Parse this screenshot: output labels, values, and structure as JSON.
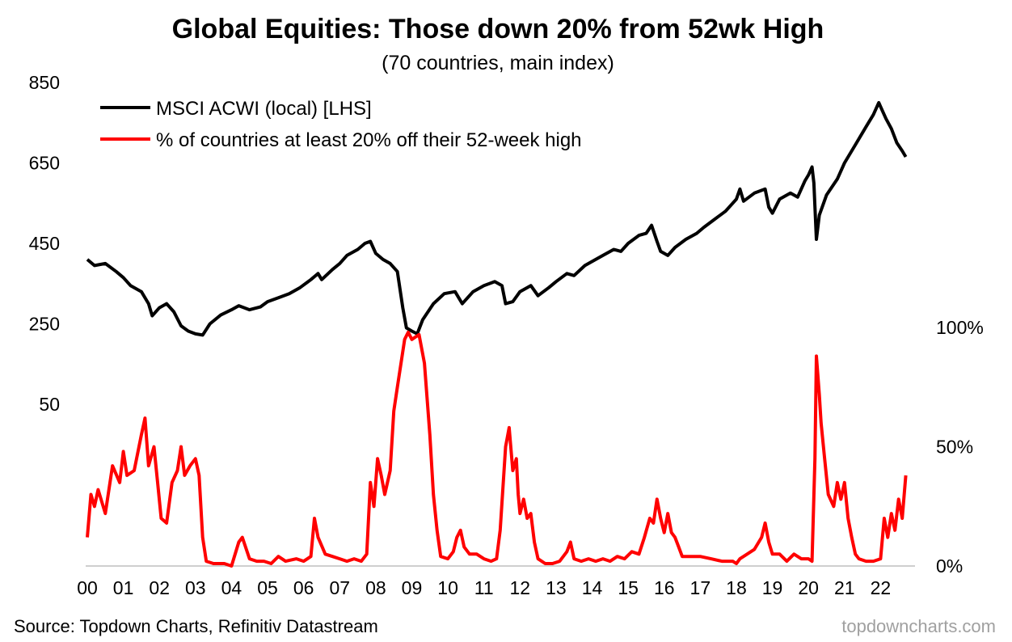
{
  "chart_data": {
    "type": "line",
    "title": "Global Equities: Those down 20% from 52wk High",
    "subtitle": "(70 countries, main index)",
    "source": "Source: Topdown Charts, Refinitiv Datastream",
    "brand": "topdowncharts.com",
    "colors": {
      "acwi": "#000000",
      "pct": "#ff0000"
    },
    "legend": {
      "placement": "top-left",
      "items": [
        {
          "name": "MSCI ACWI (local) [LHS]",
          "color": "#000000"
        },
        {
          "name": "% of countries at least 20% off their 52-week high",
          "color": "#ff0000"
        }
      ]
    },
    "x_ticks": [
      "00",
      "01",
      "02",
      "03",
      "04",
      "05",
      "06",
      "07",
      "08",
      "09",
      "10",
      "11",
      "12",
      "13",
      "14",
      "15",
      "16",
      "17",
      "18",
      "19",
      "20",
      "21",
      "22"
    ],
    "y_left": {
      "ticks": [
        "850",
        "650",
        "450",
        "250",
        "50"
      ],
      "range": [
        50,
        850
      ]
    },
    "y_right": {
      "ticks": [
        "100%",
        "50%",
        "0%"
      ],
      "range": [
        0,
        100
      ]
    },
    "series": [
      {
        "name": "MSCI ACWI (local) [LHS]",
        "axis": "left",
        "points": [
          [
            2000.0,
            410
          ],
          [
            2000.2,
            395
          ],
          [
            2000.5,
            400
          ],
          [
            2000.8,
            380
          ],
          [
            2001.0,
            365
          ],
          [
            2001.2,
            345
          ],
          [
            2001.5,
            330
          ],
          [
            2001.7,
            300
          ],
          [
            2001.8,
            270
          ],
          [
            2002.0,
            290
          ],
          [
            2002.2,
            300
          ],
          [
            2002.4,
            280
          ],
          [
            2002.6,
            245
          ],
          [
            2002.8,
            232
          ],
          [
            2003.0,
            225
          ],
          [
            2003.2,
            222
          ],
          [
            2003.4,
            250
          ],
          [
            2003.7,
            272
          ],
          [
            2004.0,
            285
          ],
          [
            2004.2,
            295
          ],
          [
            2004.5,
            285
          ],
          [
            2004.8,
            292
          ],
          [
            2005.0,
            305
          ],
          [
            2005.3,
            315
          ],
          [
            2005.6,
            325
          ],
          [
            2005.9,
            340
          ],
          [
            2006.2,
            360
          ],
          [
            2006.4,
            375
          ],
          [
            2006.5,
            360
          ],
          [
            2006.8,
            385
          ],
          [
            2007.0,
            400
          ],
          [
            2007.2,
            420
          ],
          [
            2007.5,
            435
          ],
          [
            2007.7,
            450
          ],
          [
            2007.85,
            455
          ],
          [
            2008.0,
            425
          ],
          [
            2008.2,
            410
          ],
          [
            2008.4,
            400
          ],
          [
            2008.6,
            380
          ],
          [
            2008.75,
            290
          ],
          [
            2008.85,
            240
          ],
          [
            2009.0,
            232
          ],
          [
            2009.15,
            225
          ],
          [
            2009.3,
            260
          ],
          [
            2009.6,
            300
          ],
          [
            2009.9,
            325
          ],
          [
            2010.2,
            330
          ],
          [
            2010.4,
            300
          ],
          [
            2010.7,
            330
          ],
          [
            2011.0,
            345
          ],
          [
            2011.3,
            355
          ],
          [
            2011.5,
            345
          ],
          [
            2011.6,
            300
          ],
          [
            2011.8,
            305
          ],
          [
            2012.0,
            330
          ],
          [
            2012.3,
            345
          ],
          [
            2012.5,
            320
          ],
          [
            2012.8,
            340
          ],
          [
            2013.0,
            355
          ],
          [
            2013.3,
            375
          ],
          [
            2013.5,
            370
          ],
          [
            2013.8,
            395
          ],
          [
            2014.0,
            405
          ],
          [
            2014.3,
            420
          ],
          [
            2014.6,
            435
          ],
          [
            2014.8,
            430
          ],
          [
            2015.0,
            450
          ],
          [
            2015.3,
            470
          ],
          [
            2015.5,
            475
          ],
          [
            2015.65,
            495
          ],
          [
            2015.8,
            455
          ],
          [
            2015.9,
            430
          ],
          [
            2016.1,
            420
          ],
          [
            2016.3,
            440
          ],
          [
            2016.6,
            460
          ],
          [
            2016.9,
            475
          ],
          [
            2017.1,
            490
          ],
          [
            2017.4,
            510
          ],
          [
            2017.7,
            530
          ],
          [
            2018.0,
            560
          ],
          [
            2018.1,
            585
          ],
          [
            2018.2,
            555
          ],
          [
            2018.5,
            575
          ],
          [
            2018.8,
            585
          ],
          [
            2018.9,
            540
          ],
          [
            2019.0,
            525
          ],
          [
            2019.2,
            560
          ],
          [
            2019.5,
            575
          ],
          [
            2019.7,
            565
          ],
          [
            2019.9,
            605
          ],
          [
            2020.0,
            620
          ],
          [
            2020.1,
            640
          ],
          [
            2020.15,
            600
          ],
          [
            2020.22,
            460
          ],
          [
            2020.3,
            520
          ],
          [
            2020.5,
            570
          ],
          [
            2020.8,
            610
          ],
          [
            2021.0,
            650
          ],
          [
            2021.3,
            695
          ],
          [
            2021.6,
            740
          ],
          [
            2021.8,
            770
          ],
          [
            2021.95,
            800
          ],
          [
            2022.0,
            790
          ],
          [
            2022.15,
            760
          ],
          [
            2022.3,
            735
          ],
          [
            2022.45,
            700
          ],
          [
            2022.6,
            680
          ],
          [
            2022.7,
            665
          ]
        ]
      },
      {
        "name": "% of countries at least 20% off their 52-week high",
        "axis": "right",
        "points": [
          [
            2000.0,
            12
          ],
          [
            2000.1,
            30
          ],
          [
            2000.2,
            25
          ],
          [
            2000.3,
            32
          ],
          [
            2000.5,
            22
          ],
          [
            2000.7,
            42
          ],
          [
            2000.9,
            35
          ],
          [
            2001.0,
            48
          ],
          [
            2001.1,
            38
          ],
          [
            2001.3,
            40
          ],
          [
            2001.5,
            55
          ],
          [
            2001.6,
            62
          ],
          [
            2001.7,
            42
          ],
          [
            2001.85,
            50
          ],
          [
            2001.95,
            35
          ],
          [
            2002.05,
            20
          ],
          [
            2002.2,
            18
          ],
          [
            2002.35,
            35
          ],
          [
            2002.5,
            40
          ],
          [
            2002.6,
            50
          ],
          [
            2002.7,
            38
          ],
          [
            2002.85,
            42
          ],
          [
            2003.0,
            45
          ],
          [
            2003.1,
            38
          ],
          [
            2003.2,
            12
          ],
          [
            2003.3,
            2
          ],
          [
            2003.5,
            1
          ],
          [
            2003.8,
            1
          ],
          [
            2004.0,
            0
          ],
          [
            2004.2,
            10
          ],
          [
            2004.3,
            12
          ],
          [
            2004.5,
            3
          ],
          [
            2004.7,
            2
          ],
          [
            2004.9,
            2
          ],
          [
            2005.1,
            1
          ],
          [
            2005.3,
            4
          ],
          [
            2005.5,
            2
          ],
          [
            2005.8,
            3
          ],
          [
            2006.0,
            2
          ],
          [
            2006.2,
            4
          ],
          [
            2006.3,
            20
          ],
          [
            2006.4,
            12
          ],
          [
            2006.6,
            5
          ],
          [
            2006.8,
            4
          ],
          [
            2007.0,
            3
          ],
          [
            2007.2,
            2
          ],
          [
            2007.4,
            3
          ],
          [
            2007.6,
            2
          ],
          [
            2007.75,
            5
          ],
          [
            2007.85,
            35
          ],
          [
            2007.95,
            25
          ],
          [
            2008.05,
            45
          ],
          [
            2008.15,
            38
          ],
          [
            2008.25,
            30
          ],
          [
            2008.4,
            40
          ],
          [
            2008.5,
            65
          ],
          [
            2008.6,
            75
          ],
          [
            2008.7,
            85
          ],
          [
            2008.8,
            95
          ],
          [
            2008.9,
            98
          ],
          [
            2009.0,
            95
          ],
          [
            2009.2,
            97
          ],
          [
            2009.35,
            85
          ],
          [
            2009.5,
            55
          ],
          [
            2009.6,
            30
          ],
          [
            2009.7,
            15
          ],
          [
            2009.8,
            4
          ],
          [
            2010.0,
            3
          ],
          [
            2010.15,
            6
          ],
          [
            2010.25,
            12
          ],
          [
            2010.35,
            15
          ],
          [
            2010.45,
            8
          ],
          [
            2010.6,
            5
          ],
          [
            2010.8,
            5
          ],
          [
            2011.0,
            3
          ],
          [
            2011.2,
            2
          ],
          [
            2011.35,
            3
          ],
          [
            2011.45,
            15
          ],
          [
            2011.6,
            50
          ],
          [
            2011.7,
            58
          ],
          [
            2011.8,
            40
          ],
          [
            2011.9,
            45
          ],
          [
            2011.95,
            30
          ],
          [
            2012.0,
            22
          ],
          [
            2012.1,
            28
          ],
          [
            2012.2,
            20
          ],
          [
            2012.3,
            22
          ],
          [
            2012.4,
            10
          ],
          [
            2012.5,
            3
          ],
          [
            2012.7,
            1
          ],
          [
            2012.9,
            1
          ],
          [
            2013.1,
            2
          ],
          [
            2013.3,
            6
          ],
          [
            2013.4,
            10
          ],
          [
            2013.5,
            3
          ],
          [
            2013.7,
            2
          ],
          [
            2013.9,
            3
          ],
          [
            2014.1,
            2
          ],
          [
            2014.3,
            3
          ],
          [
            2014.5,
            2
          ],
          [
            2014.7,
            4
          ],
          [
            2014.9,
            3
          ],
          [
            2015.1,
            6
          ],
          [
            2015.3,
            5
          ],
          [
            2015.45,
            12
          ],
          [
            2015.6,
            20
          ],
          [
            2015.7,
            18
          ],
          [
            2015.8,
            28
          ],
          [
            2015.9,
            20
          ],
          [
            2016.0,
            14
          ],
          [
            2016.1,
            22
          ],
          [
            2016.2,
            14
          ],
          [
            2016.3,
            12
          ],
          [
            2016.4,
            8
          ],
          [
            2016.5,
            4
          ],
          [
            2016.8,
            4
          ],
          [
            2017.0,
            4
          ],
          [
            2017.3,
            3
          ],
          [
            2017.6,
            2
          ],
          [
            2017.9,
            2
          ],
          [
            2018.0,
            1
          ],
          [
            2018.1,
            3
          ],
          [
            2018.3,
            5
          ],
          [
            2018.5,
            7
          ],
          [
            2018.7,
            12
          ],
          [
            2018.8,
            18
          ],
          [
            2018.9,
            10
          ],
          [
            2019.0,
            5
          ],
          [
            2019.2,
            5
          ],
          [
            2019.4,
            2
          ],
          [
            2019.6,
            5
          ],
          [
            2019.8,
            3
          ],
          [
            2020.0,
            3
          ],
          [
            2020.1,
            2
          ],
          [
            2020.18,
            45
          ],
          [
            2020.22,
            88
          ],
          [
            2020.3,
            72
          ],
          [
            2020.35,
            60
          ],
          [
            2020.45,
            45
          ],
          [
            2020.55,
            30
          ],
          [
            2020.7,
            25
          ],
          [
            2020.8,
            35
          ],
          [
            2020.9,
            28
          ],
          [
            2021.0,
            35
          ],
          [
            2021.1,
            20
          ],
          [
            2021.2,
            12
          ],
          [
            2021.3,
            5
          ],
          [
            2021.4,
            3
          ],
          [
            2021.6,
            2
          ],
          [
            2021.8,
            2
          ],
          [
            2022.0,
            3
          ],
          [
            2022.1,
            20
          ],
          [
            2022.2,
            12
          ],
          [
            2022.3,
            22
          ],
          [
            2022.4,
            15
          ],
          [
            2022.5,
            28
          ],
          [
            2022.6,
            20
          ],
          [
            2022.7,
            38
          ]
        ]
      }
    ]
  }
}
